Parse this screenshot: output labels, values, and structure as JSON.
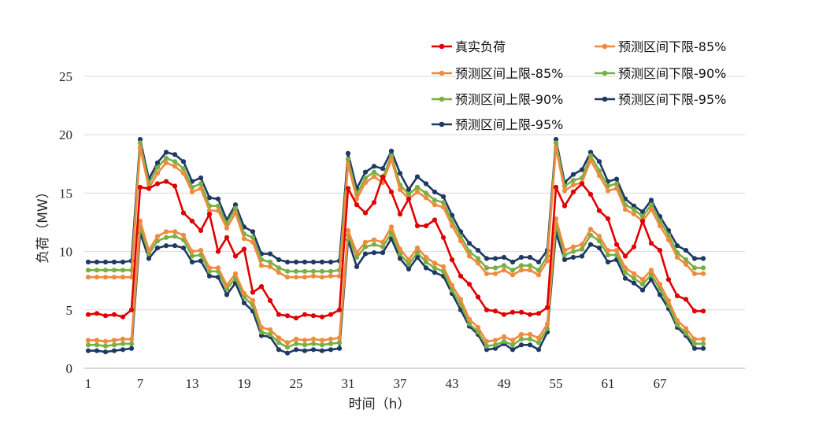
{
  "chart_data": {
    "type": "line",
    "title": "",
    "xlabel": "时间（h）",
    "ylabel": "负荷（MW）",
    "ylim": [
      0,
      25
    ],
    "yticks": [
      0,
      5,
      10,
      15,
      20,
      25
    ],
    "xticks": [
      1,
      7,
      13,
      19,
      25,
      31,
      37,
      43,
      49,
      55,
      61,
      67
    ],
    "x_range": [
      1,
      72
    ],
    "grid": "horizontal",
    "legend": "top-right",
    "series": [
      {
        "name": "真实负荷",
        "color": "#e00000",
        "values": [
          4.6,
          4.7,
          4.5,
          4.6,
          4.4,
          5.0,
          15.5,
          15.4,
          15.8,
          16.0,
          15.6,
          13.3,
          12.6,
          11.8,
          13.2,
          10.0,
          11.2,
          9.6,
          10.2,
          6.5,
          7.0,
          5.8,
          4.6,
          4.5,
          4.3,
          4.6,
          4.5,
          4.4,
          4.6,
          5.0,
          15.4,
          14.0,
          13.3,
          14.2,
          16.4,
          15.1,
          13.2,
          14.5,
          12.2,
          12.2,
          12.7,
          11.2,
          9.3,
          7.9,
          7.2,
          6.1,
          5.0,
          4.9,
          4.6,
          4.8,
          4.8,
          4.6,
          4.7,
          5.2,
          15.5,
          13.9,
          15.1,
          15.8,
          14.9,
          13.5,
          12.8,
          10.6,
          9.6,
          10.4,
          12.6,
          10.7,
          10.1,
          7.6,
          6.2,
          5.9,
          4.9,
          4.9
        ]
      },
      {
        "name": "预测区间下限-85%",
        "color": "#f08a3c",
        "values": [
          2.4,
          2.4,
          2.3,
          2.4,
          2.5,
          2.5,
          12.6,
          10.1,
          11.3,
          11.7,
          11.7,
          11.4,
          10.0,
          10.1,
          8.6,
          8.6,
          7.1,
          8.1,
          6.4,
          5.8,
          3.5,
          3.3,
          2.6,
          2.2,
          2.5,
          2.4,
          2.5,
          2.4,
          2.5,
          2.6,
          11.8,
          9.9,
          10.8,
          11.0,
          10.8,
          12.1,
          10.2,
          9.3,
          10.3,
          9.5,
          9.0,
          8.7,
          7.1,
          5.9,
          4.2,
          3.5,
          2.3,
          2.4,
          2.7,
          2.4,
          2.9,
          2.9,
          2.6,
          3.8,
          12.8,
          10.1,
          10.4,
          10.6,
          11.9,
          11.3,
          10.1,
          10.1,
          8.6,
          8.1,
          7.6,
          8.4,
          7.2,
          5.8,
          4.1,
          3.4,
          2.5,
          2.5
        ]
      },
      {
        "name": "预测区间上限-85%",
        "color": "#f08a3c",
        "values": [
          7.8,
          7.8,
          7.8,
          7.8,
          7.8,
          7.8,
          18.9,
          15.4,
          16.7,
          17.6,
          17.3,
          16.7,
          15.1,
          15.4,
          13.5,
          13.5,
          12.0,
          13.3,
          11.1,
          10.8,
          8.8,
          8.7,
          8.2,
          7.8,
          7.8,
          7.8,
          7.9,
          7.8,
          7.9,
          7.9,
          17.5,
          14.5,
          15.9,
          16.4,
          15.9,
          17.9,
          15.3,
          14.5,
          15.1,
          14.6,
          14.0,
          13.8,
          12.2,
          10.9,
          9.6,
          9.0,
          8.1,
          8.1,
          8.4,
          8.0,
          8.4,
          8.4,
          8.0,
          9.2,
          18.9,
          15.2,
          15.7,
          15.9,
          17.8,
          16.5,
          15.2,
          15.4,
          13.6,
          13.2,
          12.6,
          13.6,
          12.2,
          11.0,
          9.5,
          8.9,
          8.1,
          8.1
        ]
      },
      {
        "name": "预测区间下限-90%",
        "color": "#78b043",
        "values": [
          2.0,
          2.0,
          1.9,
          2.0,
          2.1,
          2.1,
          12.1,
          9.8,
          10.9,
          11.2,
          11.3,
          11.0,
          9.6,
          9.7,
          8.3,
          8.3,
          6.8,
          7.7,
          6.1,
          5.4,
          3.1,
          2.9,
          2.2,
          1.8,
          2.1,
          2.0,
          2.1,
          2.0,
          2.1,
          2.2,
          11.4,
          9.5,
          10.4,
          10.6,
          10.4,
          11.6,
          9.8,
          8.9,
          9.9,
          9.1,
          8.6,
          8.3,
          6.7,
          5.5,
          3.8,
          3.1,
          1.9,
          2.0,
          2.3,
          2.0,
          2.5,
          2.5,
          2.2,
          3.4,
          12.3,
          9.7,
          10.0,
          10.2,
          11.4,
          10.9,
          9.7,
          9.7,
          8.2,
          7.7,
          7.2,
          8.0,
          6.8,
          5.4,
          3.7,
          3.0,
          2.1,
          2.1
        ]
      },
      {
        "name": "预测区间上限-90%",
        "color": "#78b043",
        "values": [
          8.4,
          8.4,
          8.4,
          8.4,
          8.4,
          8.4,
          19.3,
          15.8,
          17.2,
          18.0,
          17.7,
          17.1,
          15.5,
          15.8,
          13.9,
          13.9,
          12.4,
          13.7,
          11.5,
          11.2,
          9.3,
          9.1,
          8.6,
          8.3,
          8.3,
          8.3,
          8.3,
          8.3,
          8.3,
          8.4,
          17.9,
          14.9,
          16.3,
          16.8,
          16.3,
          18.2,
          15.7,
          14.9,
          15.5,
          15.0,
          14.4,
          14.2,
          12.6,
          11.3,
          10.0,
          9.4,
          8.6,
          8.6,
          8.8,
          8.4,
          8.8,
          8.8,
          8.4,
          9.6,
          19.3,
          15.6,
          16.1,
          16.3,
          18.2,
          16.9,
          15.6,
          15.8,
          14.0,
          13.6,
          13.0,
          14.0,
          12.6,
          11.4,
          9.9,
          9.3,
          8.6,
          8.6
        ]
      },
      {
        "name": "预测区间下限-95%",
        "color": "#1f3864",
        "values": [
          1.5,
          1.5,
          1.4,
          1.5,
          1.6,
          1.7,
          11.6,
          9.4,
          10.3,
          10.5,
          10.5,
          10.3,
          9.1,
          9.2,
          7.9,
          7.8,
          6.3,
          7.3,
          5.6,
          4.9,
          2.8,
          2.7,
          1.6,
          1.3,
          1.6,
          1.5,
          1.6,
          1.5,
          1.6,
          1.7,
          11.0,
          8.7,
          9.8,
          9.9,
          9.9,
          11.1,
          9.4,
          8.5,
          9.5,
          8.6,
          8.2,
          7.9,
          6.4,
          5.0,
          3.6,
          2.9,
          1.6,
          1.7,
          2.1,
          1.6,
          2.0,
          2.0,
          1.6,
          3.1,
          11.6,
          9.3,
          9.5,
          9.6,
          10.6,
          10.3,
          9.1,
          9.3,
          7.7,
          7.3,
          6.7,
          7.6,
          6.3,
          5.1,
          3.5,
          2.8,
          1.7,
          1.7
        ]
      },
      {
        "name": "预测区间上限-95%",
        "color": "#1f3864",
        "values": [
          9.1,
          9.1,
          9.1,
          9.1,
          9.1,
          9.2,
          19.6,
          16.2,
          17.6,
          18.5,
          18.3,
          17.7,
          16.0,
          16.3,
          14.6,
          14.5,
          12.7,
          14.0,
          12.1,
          11.7,
          9.8,
          9.8,
          9.3,
          9.1,
          9.1,
          9.1,
          9.1,
          9.1,
          9.1,
          9.2,
          18.4,
          15.4,
          16.8,
          17.3,
          17.1,
          18.6,
          16.7,
          15.3,
          16.4,
          15.8,
          15.1,
          14.7,
          13.1,
          11.7,
          10.7,
          10.1,
          9.4,
          9.4,
          9.5,
          9.1,
          9.5,
          9.5,
          9.1,
          10.1,
          19.6,
          15.9,
          16.6,
          17.0,
          18.5,
          17.7,
          16.0,
          16.2,
          14.5,
          13.9,
          13.4,
          14.4,
          13.0,
          11.8,
          10.5,
          10.1,
          9.4,
          9.4
        ]
      }
    ]
  }
}
